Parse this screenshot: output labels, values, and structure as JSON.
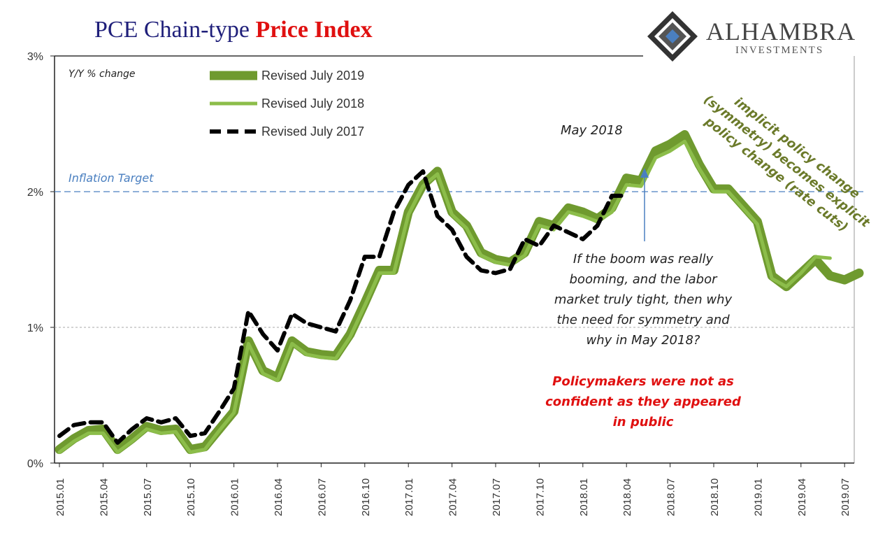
{
  "title": {
    "part1": "PCE Chain-type",
    "part2": "Price Index"
  },
  "logo": {
    "name": "ALHAMBRA",
    "sub": "INVESTMENTS"
  },
  "chart_data": {
    "type": "line",
    "title": "PCE Chain-type Price Index",
    "ylabel": "Y/Y % change",
    "ylim": [
      0,
      3
    ],
    "yticks": [
      "0%",
      "1%",
      "2%",
      "3%"
    ],
    "xtick_labels": [
      "2015.01",
      "2015.04",
      "2015.07",
      "2015.10",
      "2016.01",
      "2016.04",
      "2016.07",
      "2016.10",
      "2017.01",
      "2017.04",
      "2017.07",
      "2017.10",
      "2018.01",
      "2018.04",
      "2018.07",
      "2018.10",
      "2019.01",
      "2019.04",
      "2019.07"
    ],
    "x_start": "2015.01",
    "legend_position": "top-left",
    "series": [
      {
        "name": "Revised July 2018",
        "color": "#8cbd4a",
        "values": [
          0.08,
          0.16,
          0.22,
          0.22,
          0.08,
          0.16,
          0.25,
          0.22,
          0.23,
          0.08,
          0.1,
          0.24,
          0.37,
          0.88,
          0.66,
          0.61,
          0.88,
          0.8,
          0.78,
          0.77,
          0.93,
          1.16,
          1.4,
          1.4,
          1.83,
          2.04,
          2.13,
          1.83,
          1.73,
          1.53,
          1.48,
          1.46,
          1.53,
          1.75,
          1.72,
          1.85,
          1.82,
          1.78,
          1.85,
          2.05,
          2.04,
          2.25,
          2.3,
          2.37,
          2.17,
          2.0,
          2.0,
          1.88,
          1.76,
          1.36,
          1.3,
          1.4,
          1.52,
          1.51
        ]
      },
      {
        "name": "Revised July 2019",
        "color": "#6f9a2f",
        "values": [
          0.1,
          0.18,
          0.24,
          0.25,
          0.1,
          0.18,
          0.27,
          0.24,
          0.25,
          0.1,
          0.12,
          0.25,
          0.38,
          0.9,
          0.68,
          0.63,
          0.9,
          0.82,
          0.8,
          0.79,
          0.95,
          1.18,
          1.42,
          1.42,
          1.85,
          2.05,
          2.15,
          1.85,
          1.75,
          1.55,
          1.5,
          1.48,
          1.55,
          1.78,
          1.75,
          1.88,
          1.85,
          1.8,
          1.88,
          2.1,
          2.08,
          2.3,
          2.35,
          2.42,
          2.2,
          2.02,
          2.02,
          1.9,
          1.78,
          1.38,
          1.3,
          1.4,
          1.5,
          1.38,
          1.35,
          1.4
        ]
      },
      {
        "name": "Revised July 2017",
        "color": "#000000",
        "dashed": true,
        "values": [
          0.2,
          0.28,
          0.3,
          0.3,
          0.15,
          0.25,
          0.33,
          0.3,
          0.33,
          0.2,
          0.22,
          0.38,
          0.55,
          1.12,
          0.95,
          0.83,
          1.1,
          1.03,
          1.0,
          0.97,
          1.2,
          1.52,
          1.52,
          1.85,
          2.05,
          2.15,
          1.82,
          1.72,
          1.52,
          1.42,
          1.4,
          1.43,
          1.65,
          1.6,
          1.75,
          1.7,
          1.65,
          1.75,
          1.97,
          1.97
        ]
      }
    ],
    "reference_line": {
      "label": "Inflation Target",
      "value": 2,
      "color": "#4a7fc0"
    },
    "annotations": {
      "may2018": "May 2018",
      "question": [
        "If the boom was really",
        "booming, and the labor",
        "market truly tight, then why",
        "the need for symmetry and",
        "why in May 2018?"
      ],
      "policymakers": [
        "Policymakers were not as",
        "confident as they appeared",
        "in public"
      ],
      "implicit": [
        "implicit policy change",
        "(symmetry) becomes explicit",
        "policy change (rate cuts)"
      ]
    }
  }
}
